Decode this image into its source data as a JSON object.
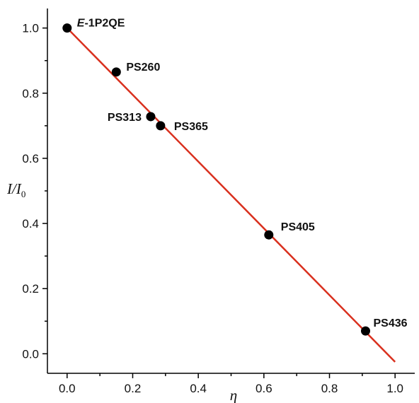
{
  "chart_data": {
    "type": "scatter",
    "xlabel": "η",
    "ylabel": {
      "main": "I/I",
      "sub": "0"
    },
    "xlim": [
      -0.06,
      1.06
    ],
    "ylim": [
      -0.06,
      1.06
    ],
    "x_ticks": [
      "0.0",
      "0.2",
      "0.4",
      "0.6",
      "0.8",
      "1.0"
    ],
    "y_ticks": [
      "0.0",
      "0.2",
      "0.4",
      "0.6",
      "0.8",
      "1.0"
    ],
    "points": [
      {
        "label": "E-1P2QE",
        "label_italic_prefix": "E",
        "label_rest": "-1P2QE",
        "x": 0.0,
        "y": 1.0
      },
      {
        "label": "PS260",
        "x": 0.15,
        "y": 0.865
      },
      {
        "label": "PS313",
        "x": 0.255,
        "y": 0.728
      },
      {
        "label": "PS365",
        "x": 0.285,
        "y": 0.7
      },
      {
        "label": "PS405",
        "x": 0.615,
        "y": 0.365
      },
      {
        "label": "PS436",
        "x": 0.91,
        "y": 0.07
      }
    ],
    "fit_line": {
      "x": [
        0.0,
        1.0
      ],
      "y": [
        1.0,
        -0.025
      ]
    },
    "colors": {
      "points": "#000000",
      "fit_line": "#d9301e",
      "axes": "#000000"
    },
    "grid": false,
    "legend": "none"
  }
}
